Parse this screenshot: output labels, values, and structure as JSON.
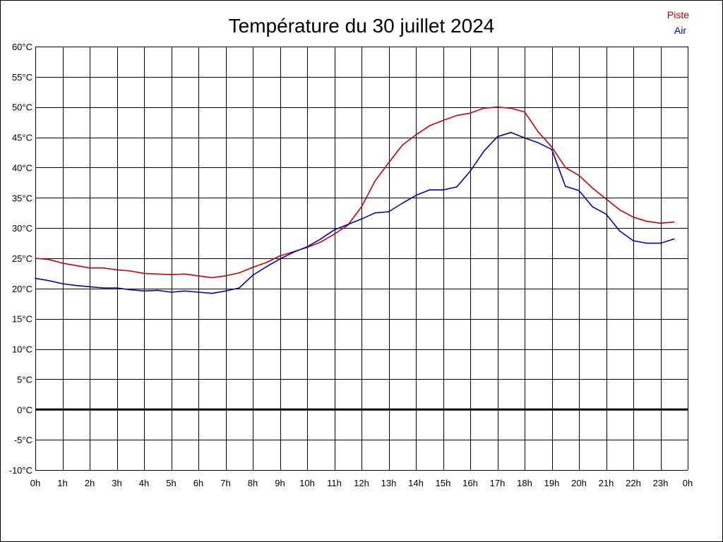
{
  "chart_data": {
    "type": "line",
    "title": "Température du 30 juillet 2024",
    "xlabel": "",
    "ylabel": "",
    "x_tick_labels": [
      "0h",
      "1h",
      "2h",
      "3h",
      "4h",
      "5h",
      "6h",
      "7h",
      "8h",
      "9h",
      "10h",
      "11h",
      "12h",
      "13h",
      "14h",
      "15h",
      "16h",
      "17h",
      "18h",
      "19h",
      "20h",
      "21h",
      "22h",
      "23h",
      "0h"
    ],
    "y_tick_labels": [
      "60°C",
      "55°C",
      "50°C",
      "45°C",
      "40°C",
      "35°C",
      "30°C",
      "25°C",
      "20°C",
      "15°C",
      "10°C",
      "5°C",
      "0°C",
      "-5°C",
      "-10°C"
    ],
    "xlim": [
      0,
      24
    ],
    "ylim": [
      -10,
      60
    ],
    "grid": true,
    "legend_position": "top-right",
    "x": [
      0,
      0.5,
      1,
      1.5,
      2,
      2.5,
      3,
      3.5,
      4,
      4.5,
      5,
      5.5,
      6,
      6.5,
      7,
      7.5,
      8,
      8.5,
      9,
      9.5,
      10,
      10.5,
      11,
      11.5,
      12,
      12.5,
      13,
      13.5,
      14,
      14.5,
      15,
      15.5,
      16,
      16.5,
      17,
      17.5,
      18,
      18.5,
      19,
      19.5,
      20,
      20.5,
      21,
      21.5,
      22,
      22.5,
      23,
      23.5
    ],
    "series": [
      {
        "name": "Piste",
        "color": "#cc0000",
        "values": [
          25.0,
          24.8,
          24.2,
          23.8,
          23.4,
          23.4,
          23.1,
          22.9,
          22.5,
          22.4,
          22.3,
          22.4,
          22.1,
          21.8,
          22.1,
          22.6,
          23.5,
          24.3,
          25.4,
          26.1,
          26.8,
          27.7,
          29.0,
          30.5,
          33.5,
          37.8,
          40.8,
          43.7,
          45.4,
          46.9,
          47.8,
          48.6,
          49.0,
          49.8,
          50.0,
          49.8,
          49.2,
          45.9,
          43.4,
          40.0,
          38.7,
          36.6,
          34.8,
          33.0,
          31.8,
          31.1,
          30.8,
          31.0
        ]
      },
      {
        "name": "Air",
        "color": "#0000cc",
        "values": [
          21.7,
          21.3,
          20.8,
          20.5,
          20.3,
          20.1,
          20.1,
          19.8,
          19.6,
          19.7,
          19.4,
          19.6,
          19.4,
          19.2,
          19.6,
          20.1,
          22.2,
          23.6,
          24.9,
          26.0,
          26.9,
          28.2,
          29.7,
          30.6,
          31.5,
          32.5,
          32.7,
          34.1,
          35.4,
          36.3,
          36.3,
          36.8,
          39.4,
          42.7,
          45.1,
          45.8,
          44.9,
          44.1,
          43.0,
          36.9,
          36.2,
          33.5,
          32.3,
          29.5,
          27.9,
          27.5,
          27.5,
          28.2
        ]
      }
    ]
  }
}
